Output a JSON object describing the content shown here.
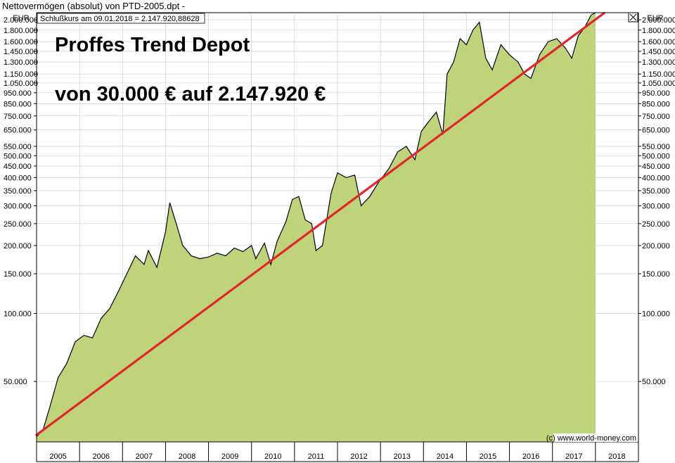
{
  "window_title": "Nettovermögen (absolut) von PTD-2005.dpt -",
  "close_icon": "close-x-icon",
  "colors": {
    "area_fill": "#bfd47a",
    "price_line": "#000000",
    "trend_line": "#e0262b",
    "grid": "#c8c8c8",
    "frame": "#000000"
  },
  "chart_data": {
    "type": "area",
    "title": "Proffes Trend Depot",
    "subtitle": "von 30.000 € auf 2.147.920 €",
    "caption": "Schlußkurs am 09.01.2018 = 2.147.920,88628",
    "credit": "(c) www.world-money.com",
    "yunit_left": "EUR",
    "yunit_right": "EUR",
    "yscale": "log",
    "ylim": [
      27000,
      2150000
    ],
    "xlim": [
      2005.0,
      2019.0
    ],
    "grid": true,
    "y_ticks": [
      {
        "value": 50000,
        "label": "50.000"
      },
      {
        "value": 100000,
        "label": "100.000"
      },
      {
        "value": 150000,
        "label": "150.000"
      },
      {
        "value": 200000,
        "label": "200.000"
      },
      {
        "value": 250000,
        "label": "250.000"
      },
      {
        "value": 300000,
        "label": "300.000"
      },
      {
        "value": 350000,
        "label": "350.000"
      },
      {
        "value": 400000,
        "label": "400.000"
      },
      {
        "value": 450000,
        "label": "450.000"
      },
      {
        "value": 500000,
        "label": "500.000"
      },
      {
        "value": 550000,
        "label": "550.000"
      },
      {
        "value": 650000,
        "label": "650.000"
      },
      {
        "value": 750000,
        "label": "750.000"
      },
      {
        "value": 850000,
        "label": "850.000"
      },
      {
        "value": 950000,
        "label": "950.000"
      },
      {
        "value": 1050000,
        "label": "1.050.000"
      },
      {
        "value": 1150000,
        "label": "1.150.000"
      },
      {
        "value": 1300000,
        "label": "1.300.000"
      },
      {
        "value": 1450000,
        "label": "1.450.000"
      },
      {
        "value": 1600000,
        "label": "1.600.000"
      },
      {
        "value": 1800000,
        "label": "1.800.000"
      },
      {
        "value": 2000000,
        "label": "2.000.000"
      }
    ],
    "x_labels": [
      "2005",
      "2006",
      "2007",
      "2008",
      "2009",
      "2010",
      "2011",
      "2012",
      "2013",
      "2014",
      "2015",
      "2016",
      "2017",
      "2018"
    ],
    "series": [
      {
        "values": [
          [
            2005.0,
            28500
          ],
          [
            2005.15,
            30500
          ],
          [
            2005.3,
            38000
          ],
          [
            2005.5,
            52000
          ],
          [
            2005.7,
            60000
          ],
          [
            2005.9,
            75000
          ],
          [
            2006.1,
            80000
          ],
          [
            2006.3,
            78000
          ],
          [
            2006.5,
            95000
          ],
          [
            2006.7,
            105000
          ],
          [
            2006.9,
            125000
          ],
          [
            2007.1,
            150000
          ],
          [
            2007.3,
            180000
          ],
          [
            2007.5,
            165000
          ],
          [
            2007.6,
            190000
          ],
          [
            2007.8,
            160000
          ],
          [
            2008.0,
            230000
          ],
          [
            2008.1,
            310000
          ],
          [
            2008.25,
            250000
          ],
          [
            2008.4,
            200000
          ],
          [
            2008.6,
            180000
          ],
          [
            2008.8,
            175000
          ],
          [
            2009.0,
            178000
          ],
          [
            2009.2,
            185000
          ],
          [
            2009.4,
            180000
          ],
          [
            2009.6,
            195000
          ],
          [
            2009.8,
            188000
          ],
          [
            2010.0,
            200000
          ],
          [
            2010.1,
            175000
          ],
          [
            2010.3,
            205000
          ],
          [
            2010.45,
            165000
          ],
          [
            2010.6,
            210000
          ],
          [
            2010.8,
            255000
          ],
          [
            2010.95,
            320000
          ],
          [
            2011.1,
            330000
          ],
          [
            2011.25,
            260000
          ],
          [
            2011.4,
            250000
          ],
          [
            2011.5,
            190000
          ],
          [
            2011.65,
            200000
          ],
          [
            2011.85,
            340000
          ],
          [
            2012.0,
            420000
          ],
          [
            2012.2,
            400000
          ],
          [
            2012.4,
            410000
          ],
          [
            2012.55,
            300000
          ],
          [
            2012.75,
            330000
          ],
          [
            2012.95,
            380000
          ],
          [
            2013.2,
            440000
          ],
          [
            2013.4,
            520000
          ],
          [
            2013.6,
            550000
          ],
          [
            2013.8,
            480000
          ],
          [
            2013.95,
            640000
          ],
          [
            2014.1,
            700000
          ],
          [
            2014.3,
            780000
          ],
          [
            2014.45,
            620000
          ],
          [
            2014.55,
            1150000
          ],
          [
            2014.7,
            1300000
          ],
          [
            2014.85,
            1650000
          ],
          [
            2015.0,
            1550000
          ],
          [
            2015.15,
            1800000
          ],
          [
            2015.3,
            1950000
          ],
          [
            2015.45,
            1350000
          ],
          [
            2015.6,
            1200000
          ],
          [
            2015.8,
            1550000
          ],
          [
            2016.0,
            1400000
          ],
          [
            2016.2,
            1300000
          ],
          [
            2016.35,
            1150000
          ],
          [
            2016.5,
            1100000
          ],
          [
            2016.7,
            1400000
          ],
          [
            2016.9,
            1600000
          ],
          [
            2017.1,
            1650000
          ],
          [
            2017.3,
            1500000
          ],
          [
            2017.45,
            1350000
          ],
          [
            2017.6,
            1700000
          ],
          [
            2017.75,
            1850000
          ],
          [
            2017.9,
            2100000
          ],
          [
            2018.0,
            2147920
          ]
        ]
      }
    ],
    "trendline": {
      "start": [
        2005.0,
        29000
      ],
      "end": [
        2018.2,
        2140000
      ]
    }
  }
}
